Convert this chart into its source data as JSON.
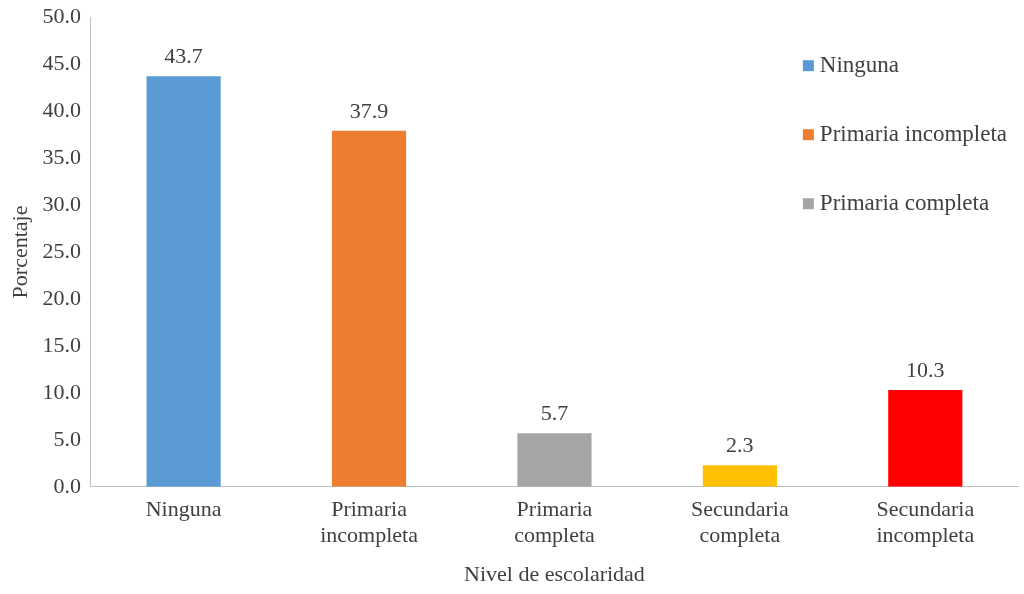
{
  "chart_data": {
    "type": "bar",
    "xlabel": "Nivel de escolaridad",
    "ylabel": "Porcentaje",
    "categories": [
      "Ninguna",
      "Primaria incompleta",
      "Primaria completa",
      "Secundaria completa",
      "Secundaria incompleta"
    ],
    "series": [
      {
        "name": "Ninguna",
        "color": "#5b9bd5",
        "values": [
          43.7,
          null,
          null,
          null,
          null
        ]
      },
      {
        "name": "Primaria incompleta",
        "color": "#ed7d31",
        "values": [
          null,
          37.9,
          null,
          null,
          null
        ]
      },
      {
        "name": "Primaria completa",
        "color": "#a5a5a5",
        "values": [
          null,
          null,
          5.7,
          null,
          null
        ]
      },
      {
        "color": "#ffc000",
        "values": [
          null,
          null,
          null,
          2.3,
          null
        ]
      },
      {
        "color": "#ff0000",
        "values": [
          null,
          null,
          null,
          null,
          10.3
        ]
      }
    ],
    "ylim": [
      0,
      50
    ],
    "yticks": [
      {
        "value": 0,
        "label": "0.0"
      },
      {
        "value": 5,
        "label": "5.0"
      },
      {
        "value": 10,
        "label": "10.0"
      },
      {
        "value": 15,
        "label": "15.0"
      },
      {
        "value": 20,
        "label": "20.0"
      },
      {
        "value": 25,
        "label": "25.0"
      },
      {
        "value": 30,
        "label": "30.0"
      },
      {
        "value": 35,
        "label": "35.0"
      },
      {
        "value": 40,
        "label": "40.0"
      },
      {
        "value": 45,
        "label": "45.0"
      },
      {
        "value": 50,
        "label": "50.0"
      }
    ],
    "grid": false,
    "legend": "top right",
    "data_labels": true
  }
}
